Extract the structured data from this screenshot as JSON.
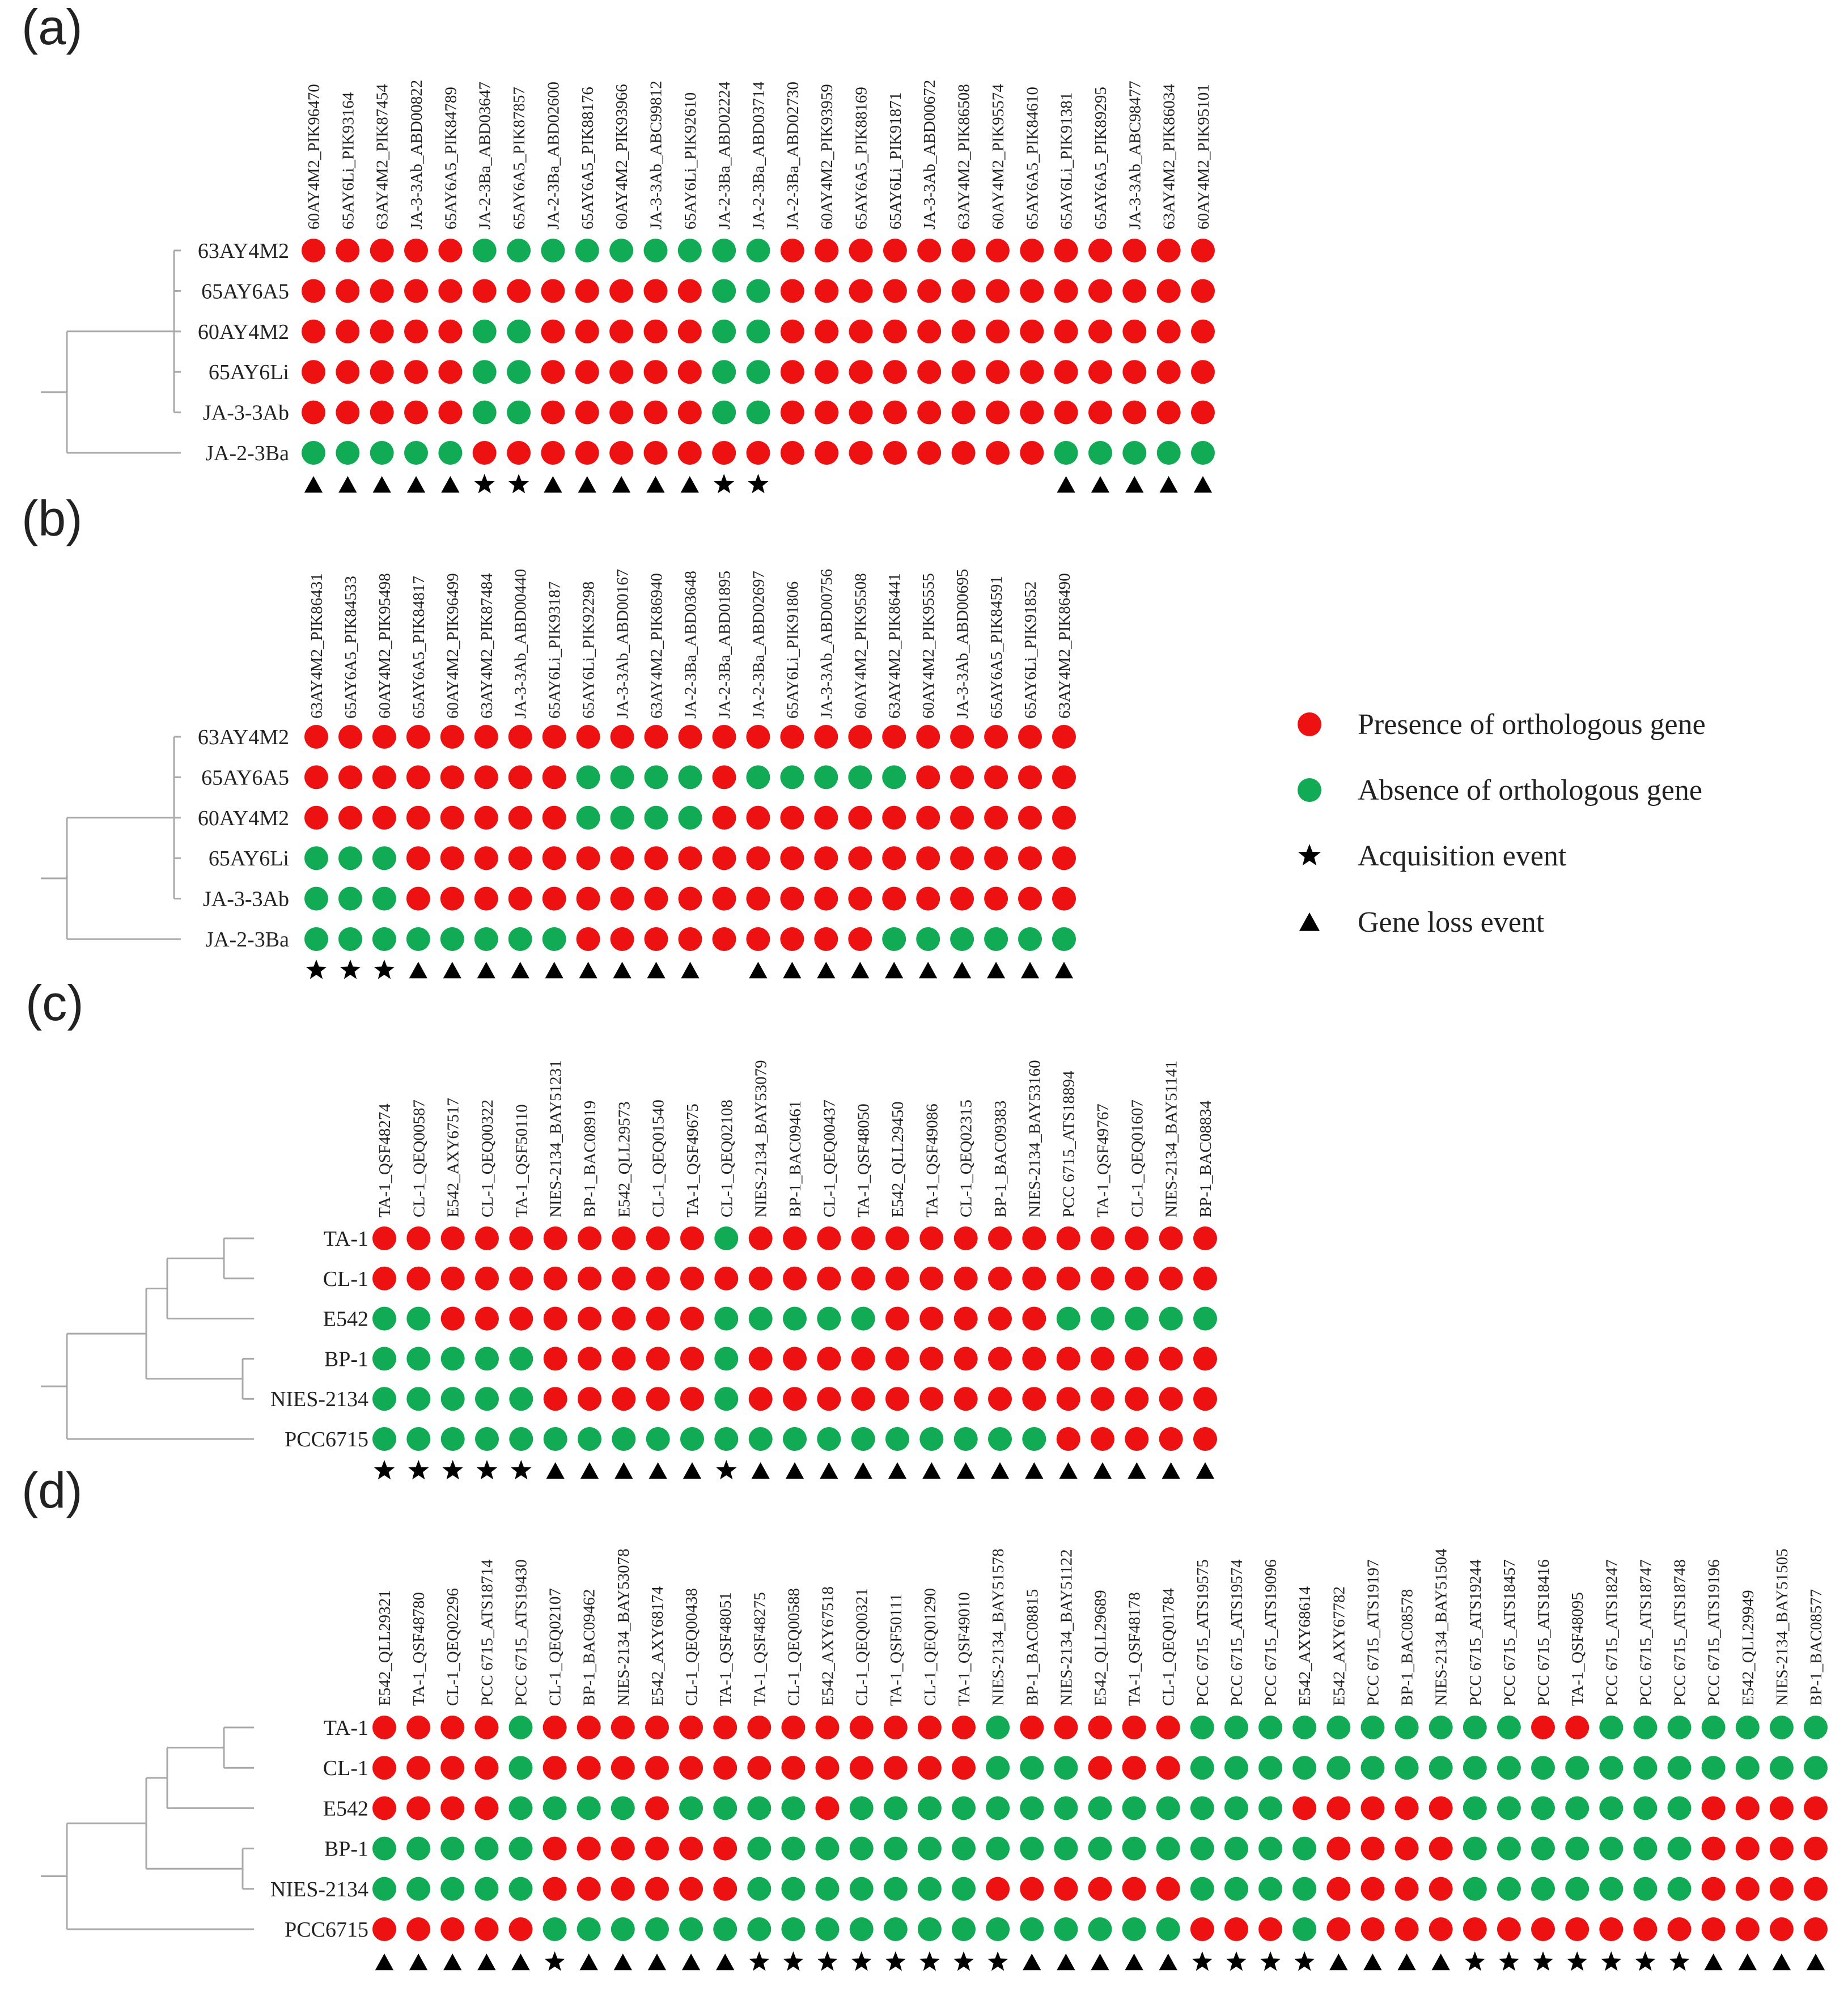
{
  "colors": {
    "present": "#ee1111",
    "absent": "#11aa55",
    "tree": "#a9a9a9",
    "event": "#000000"
  },
  "legend": [
    {
      "kind": "present",
      "label": "Presence of orthologous gene"
    },
    {
      "kind": "absent",
      "label": "Absence of orthologous gene"
    },
    {
      "kind": "star",
      "label": "Acquisition event"
    },
    {
      "kind": "triangle",
      "label": "Gene loss event"
    }
  ],
  "panels": [
    {
      "label": "(a)",
      "species": [
        "63AY4M2",
        "65AY6A5",
        "60AY4M2",
        "65AY6Li",
        "JA-3-3Ab",
        "JA-2-3Ba"
      ],
      "genes": [
        "60AY4M2_PIK96470",
        "65AY6Li_PIK93164",
        "63AY4M2_PIK87454",
        "JA-3-3Ab_ABD00822",
        "65AY6A5_PIK84789",
        "JA-2-3Ba_ABD03647",
        "65AY6A5_PIK87857",
        "JA-2-3Ba_ABD02600",
        "65AY6A5_PIK88176",
        "60AY4M2_PIK93966",
        "JA-3-3Ab_ABC99812",
        "65AY6Li_PIK92610",
        "JA-2-3Ba_ABD02224",
        "JA-2-3Ba_ABD03714",
        "JA-2-3Ba_ABD02730",
        "60AY4M2_PIK93959",
        "65AY6A5_PIK88169",
        "65AY6Li_PIK91871",
        "JA-3-3Ab_ABD00672",
        "63AY4M2_PIK86508",
        "60AY4M2_PIK95574",
        "65AY6A5_PIK84610",
        "65AY6Li_PIK91381",
        "65AY6A5_PIK89295",
        "JA-3-3Ab_ABC98477",
        "63AY4M2_PIK86034",
        "60AY4M2_PIK95101"
      ],
      "matrix": [
        "PPPPPAAAAAAAAAPPPPPPPPPPPPP",
        "PPPPPPPPPPPPAAPPPPPPPPPPPPP",
        "PPPPPAAPPPPPAAPPPPPPPPPPPPP",
        "PPPPPAAPPPPPAAPPPPPPPPPPPPP",
        "PPPPPAAPPPPPAAPPPPPPPPPPPPP",
        "AAAAAPPPPPPPPPPPPPPPPPAAAAA"
      ],
      "events": "TTTTTSSTTTTTSS--------TTTTT"
    },
    {
      "label": "(b)",
      "species": [
        "63AY4M2",
        "65AY6A5",
        "60AY4M2",
        "65AY6Li",
        "JA-3-3Ab",
        "JA-2-3Ba"
      ],
      "genes": [
        "63AY4M2_PIK86431",
        "65AY6A5_PIK84533",
        "60AY4M2_PIK95498",
        "65AY6A5_PIK84817",
        "60AY4M2_PIK96499",
        "63AY4M2_PIK87484",
        "JA-3-3Ab_ABD00440",
        "65AY6Li_PIK93187",
        "65AY6Li_PIK92298",
        "JA-3-3Ab_ABD00167",
        "63AY4M2_PIK86940",
        "JA-2-3Ba_ABD03648",
        "JA-2-3Ba_ABD01895",
        "JA-2-3Ba_ABD02697",
        "65AY6Li_PIK91806",
        "JA-3-3Ab_ABD00756",
        "60AY4M2_PIK95508",
        "63AY4M2_PIK86441",
        "60AY4M2_PIK95555",
        "JA-3-3Ab_ABD00695",
        "65AY6A5_PIK84591",
        "65AY6Li_PIK91852",
        "63AY4M2_PIK86490"
      ],
      "matrix": [
        "PPPPPPPPPPPPPPPPPPPPPPP",
        "PPPPPPPPAAAAPAAAAAPPPPP",
        "PPPPPPPPAAAAPPPPPPPPPPP",
        "AAAPPPPPPPPPPPPPPPPPPPP",
        "AAAPPPPPPPPPPPPPPPPPPPP",
        "AAAAAAAAPPPPPPPPPAAAAAA"
      ],
      "events": "SSSTTTTTTTTT-TTTTTTTTTT"
    },
    {
      "label": "(c)",
      "species": [
        "TA-1",
        "CL-1",
        "E542",
        "BP-1",
        "NIES-2134",
        "PCC6715"
      ],
      "genes": [
        "TA-1_QSF48274",
        "CL-1_QEQ00587",
        "E542_AXY67517",
        "CL-1_QEQ00322",
        "TA-1_QSF50110",
        "NIES-2134_BAY51231",
        "BP-1_BAC08919",
        "E542_QLL29573",
        "CL-1_QEQ01540",
        "TA-1_QSF49675",
        "CL-1_QEQ02108",
        "NIES-2134_BAY53079",
        "BP-1_BAC09461",
        "CL-1_QEQ00437",
        "TA-1_QSF48050",
        "E542_QLL29450",
        "TA-1_QSF49086",
        "CL-1_QEQ02315",
        "BP-1_BAC09383",
        "NIES-2134_BAY53160",
        "PCC 6715_ATS18894",
        "TA-1_QSF49767",
        "CL-1_QEQ01607",
        "NIES-2134_BAY51141",
        "BP-1_BAC08834"
      ],
      "matrix": [
        "PPPPPPPPPPAPPPPPPPPPPPPPP",
        "PPPPPPPPPPPPPPPPPPPPPPPPP",
        "AAPPPPPPPPAAAAAPPPPPAAAAA",
        "AAAAAPPPPPAPPPPPPPPPPPPPP",
        "AAAAAPPPPPAPPPPPPPPPPPPPP",
        "AAAAAAAAAAAAAAAAAAAAPPPPP"
      ],
      "events": "SSSSSTTTTTSTTTTTTTTTTTTTT"
    },
    {
      "label": "(d)",
      "species": [
        "TA-1",
        "CL-1",
        "E542",
        "BP-1",
        "NIES-2134",
        "PCC6715"
      ],
      "genes": [
        "E542_QLL29321",
        "TA-1_QSF48780",
        "CL-1_QEQ02296",
        "PCC 6715_ATS18714",
        "PCC 6715_ATS19430",
        "CL-1_QEQ02107",
        "BP-1_BAC09462",
        "NIES-2134_BAY53078",
        "E542_AXY68174",
        "CL-1_QEQ00438",
        "TA-1_QSF48051",
        "TA-1_QSF48275",
        "CL-1_QEQ00588",
        "E542_AXY67518",
        "CL-1_QEQ00321",
        "TA-1_QSF50111",
        "CL-1_QEQ01290",
        "TA-1_QSF49010",
        "NIES-2134_BAY51578",
        "BP-1_BAC08815",
        "NIES-2134_BAY51122",
        "E542_QLL29689",
        "TA-1_QSF48178",
        "CL-1_QEQ01784",
        "PCC 6715_ATS19575",
        "PCC 6715_ATS19574",
        "PCC 6715_ATS19096",
        "E542_AXY68614",
        "E542_AXY67782",
        "PCC 6715_ATS19197",
        "BP-1_BAC08578",
        "NIES-2134_BAY51504",
        "PCC 6715_ATS19244",
        "PCC 6715_ATS18457",
        "PCC 6715_ATS18416",
        "TA-1_QSF48095",
        "PCC 6715_ATS18247",
        "PCC 6715_ATS18747",
        "PCC 6715_ATS18748",
        "PCC 6715_ATS19196",
        "E542_QLL29949",
        "NIES-2134_BAY51505",
        "BP-1_BAC08577"
      ],
      "matrix": [
        "PPPPAPPPPPPPPPPPPPAPPPPPAAAAAAAAAAPPAAAAAAA",
        "PPPPAPPPPPPPPPPPPPAAAPPPAAAAAAAAAAAAAAAAAAA",
        "PPPPAAAAPAAAAPAAAAAAAAAAAAAPPPPPAAAAAAAPPPP",
        "AAAAAPPPPPPAAAAAAAAAAAAAAAAAPPPPAAAAAAAPPPP",
        "AAAAAPPPPPPAAAAAAAPPPPPPAAAAPPPPAAAAAAAPPPP",
        "PPPPPAAAAAAAAAAAAAAAAAAAPPPAPPPPPPPPPPPPPPP"
      ],
      "events": "TTTTTSTTTTTSSSSSSSSTTTTTSSSSTTTTSSSSSSSTTTT"
    }
  ]
}
